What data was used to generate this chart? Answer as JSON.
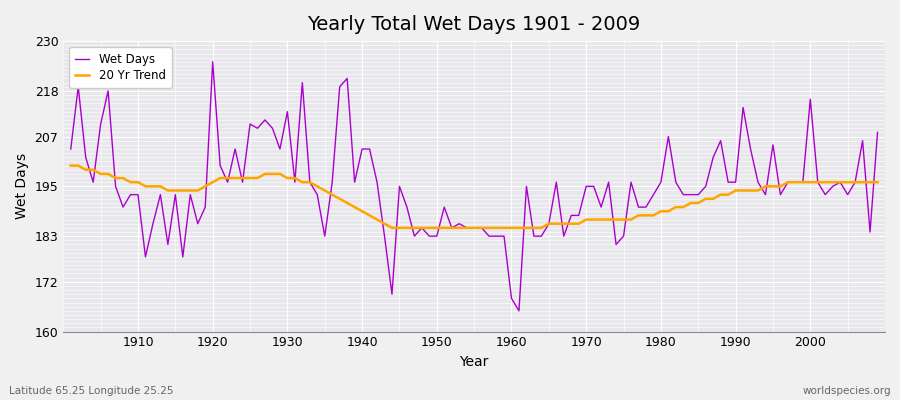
{
  "title": "Yearly Total Wet Days 1901 - 2009",
  "xlabel": "Year",
  "ylabel": "Wet Days",
  "subtitle_left": "Latitude 65.25 Longitude 25.25",
  "subtitle_right": "worldspecies.org",
  "line_color": "#AA00CC",
  "trend_color": "#FFA500",
  "bg_color": "#F0F0F0",
  "plot_bg_color": "#E8E8EC",
  "ylim": [
    160,
    230
  ],
  "yticks": [
    160,
    172,
    183,
    195,
    207,
    218,
    230
  ],
  "years": [
    1901,
    1902,
    1903,
    1904,
    1905,
    1906,
    1907,
    1908,
    1909,
    1910,
    1911,
    1912,
    1913,
    1914,
    1915,
    1916,
    1917,
    1918,
    1919,
    1920,
    1921,
    1922,
    1923,
    1924,
    1925,
    1926,
    1927,
    1928,
    1929,
    1930,
    1931,
    1932,
    1933,
    1934,
    1935,
    1936,
    1937,
    1938,
    1939,
    1940,
    1941,
    1942,
    1943,
    1944,
    1945,
    1946,
    1947,
    1948,
    1949,
    1950,
    1951,
    1952,
    1953,
    1954,
    1955,
    1956,
    1957,
    1958,
    1959,
    1960,
    1961,
    1962,
    1963,
    1964,
    1965,
    1966,
    1967,
    1968,
    1969,
    1970,
    1971,
    1972,
    1973,
    1974,
    1975,
    1976,
    1977,
    1978,
    1979,
    1980,
    1981,
    1982,
    1983,
    1984,
    1985,
    1986,
    1987,
    1988,
    1989,
    1990,
    1991,
    1992,
    1993,
    1994,
    1995,
    1996,
    1997,
    1998,
    1999,
    2000,
    2001,
    2002,
    2003,
    2004,
    2005,
    2006,
    2007,
    2008,
    2009
  ],
  "wet_days": [
    204,
    219,
    202,
    196,
    210,
    218,
    195,
    190,
    193,
    193,
    178,
    186,
    193,
    181,
    193,
    178,
    193,
    186,
    190,
    225,
    200,
    196,
    204,
    196,
    210,
    209,
    211,
    209,
    204,
    213,
    196,
    220,
    196,
    193,
    183,
    196,
    219,
    221,
    196,
    204,
    204,
    196,
    183,
    169,
    195,
    190,
    183,
    185,
    183,
    183,
    190,
    185,
    186,
    185,
    185,
    185,
    183,
    183,
    183,
    168,
    165,
    195,
    183,
    183,
    186,
    196,
    183,
    188,
    188,
    195,
    195,
    190,
    196,
    181,
    183,
    196,
    190,
    190,
    193,
    196,
    207,
    196,
    193,
    193,
    193,
    195,
    202,
    206,
    196,
    196,
    214,
    204,
    196,
    193,
    205,
    193,
    196,
    196,
    196,
    216,
    196,
    193,
    195,
    196,
    193,
    196,
    206,
    184,
    208
  ],
  "trend": [
    200,
    200,
    199,
    199,
    198,
    198,
    197,
    197,
    196,
    196,
    195,
    195,
    195,
    194,
    194,
    194,
    194,
    194,
    195,
    196,
    197,
    197,
    197,
    197,
    197,
    197,
    198,
    198,
    198,
    197,
    197,
    196,
    196,
    195,
    194,
    193,
    192,
    191,
    190,
    189,
    188,
    187,
    186,
    185,
    185,
    185,
    185,
    185,
    185,
    185,
    185,
    185,
    185,
    185,
    185,
    185,
    185,
    185,
    185,
    185,
    185,
    185,
    185,
    185,
    186,
    186,
    186,
    186,
    186,
    187,
    187,
    187,
    187,
    187,
    187,
    187,
    188,
    188,
    188,
    189,
    189,
    190,
    190,
    191,
    191,
    192,
    192,
    193,
    193,
    194,
    194,
    194,
    194,
    195,
    195,
    195,
    196,
    196,
    196,
    196,
    196,
    196,
    196,
    196,
    196,
    196,
    196,
    196,
    196
  ]
}
